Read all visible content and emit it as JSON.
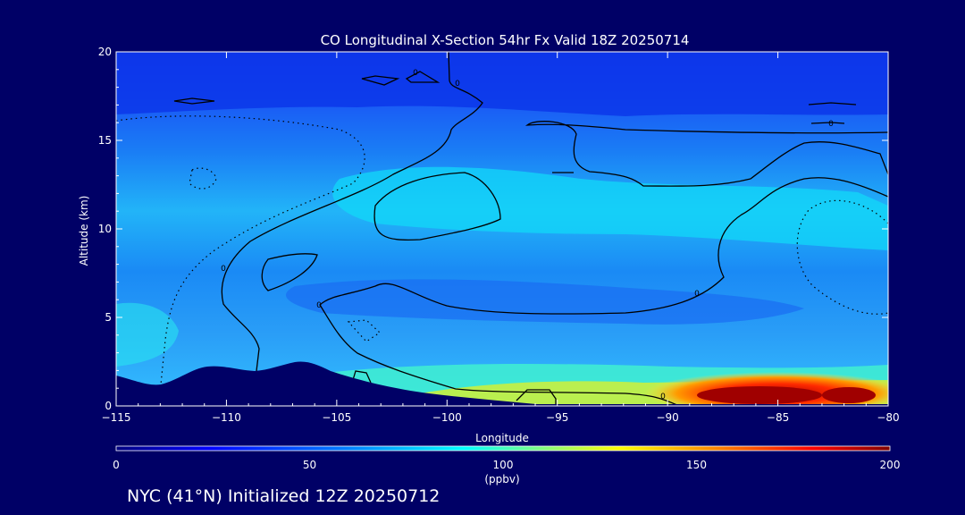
{
  "chart_data": {
    "type": "heatmap",
    "title": "CO Longitudinal X-Section 54hr  Fx Valid 18Z 20250714",
    "xlabel": "Longitude",
    "ylabel": "Altitude (km)",
    "xlim": [
      -115,
      -80
    ],
    "ylim": [
      0,
      20
    ],
    "x_ticks": [
      -115,
      -110,
      -105,
      -100,
      -95,
      -90,
      -85,
      -80
    ],
    "x_tick_labels": [
      "−115",
      "−110",
      "−105",
      "−100",
      "−95",
      "−90",
      "−85",
      "−80"
    ],
    "y_ticks": [
      0,
      5,
      10,
      15,
      20
    ],
    "y_tick_labels": [
      "0",
      "5",
      "10",
      "15",
      "20"
    ],
    "colorbar": {
      "min": 0,
      "max": 200,
      "ticks": [
        0,
        50,
        100,
        150,
        200
      ],
      "tick_labels": [
        "0",
        "50",
        "100",
        "150",
        "200"
      ],
      "units": "(ppbv)"
    },
    "contour_label": "0",
    "field": {
      "description_levels_ppbv": [
        {
          "alt_km": [
            0,
            1
          ],
          "lon_range": [
            -115,
            -95
          ],
          "value": 90
        },
        {
          "alt_km": [
            0,
            1
          ],
          "lon_range": [
            -95,
            -90
          ],
          "value": 120
        },
        {
          "alt_km": [
            0,
            1
          ],
          "lon_range": [
            -90,
            -80
          ],
          "value": 180
        },
        {
          "alt_km": [
            5,
            10
          ],
          "lon_range": [
            -105,
            -80
          ],
          "value": 65
        },
        {
          "alt_km": [
            10,
            13
          ],
          "lon_range": [
            -100,
            -85
          ],
          "value": 75
        },
        {
          "alt_km": [
            17,
            20
          ],
          "lon_range": [
            -115,
            -80
          ],
          "value": 30
        }
      ]
    }
  },
  "footer_text": "NYC (41°N) Initialized 12Z 20250712",
  "colors": {
    "background": "#000066",
    "colormap": [
      "#00007f",
      "#0000ff",
      "#0080ff",
      "#00ffff",
      "#80ff80",
      "#ffff00",
      "#ff8000",
      "#ff0000",
      "#7f0000"
    ],
    "terrain": "#000066"
  }
}
